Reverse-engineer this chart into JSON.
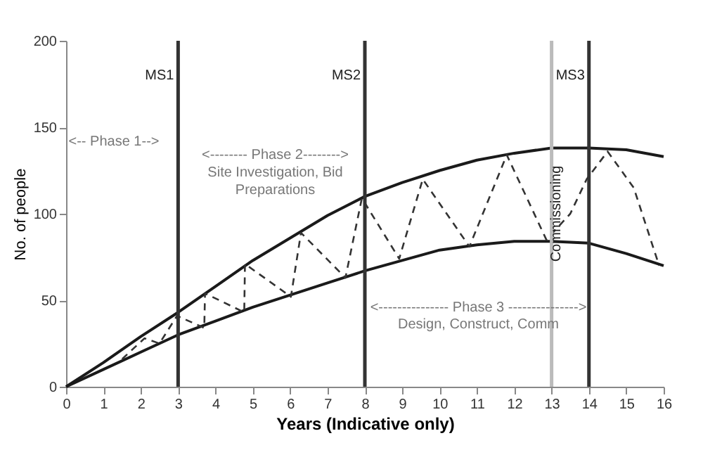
{
  "chart_data": {
    "type": "line",
    "xlabel": "Years (Indicative only)",
    "ylabel": "No. of people",
    "xlim": [
      0,
      16
    ],
    "xticks": [
      0,
      1,
      2,
      3,
      4,
      5,
      6,
      7,
      8,
      9,
      10,
      11,
      12,
      13,
      14,
      15,
      16
    ],
    "ylim": [
      0,
      200
    ],
    "yticks": [
      0,
      50,
      100,
      150,
      200
    ],
    "grid": false,
    "marker": "none",
    "series": [
      {
        "color": "#1a1a1a",
        "line_style": "solid",
        "x": [
          0,
          1,
          2,
          3,
          4,
          5,
          6,
          7,
          8,
          9,
          10,
          11,
          12,
          13,
          14,
          15,
          16
        ],
        "values": [
          0,
          14,
          29,
          43,
          58,
          73,
          86,
          99,
          110,
          118,
          125,
          131,
          135,
          138,
          138,
          137,
          133
        ]
      },
      {
        "color": "#1a1a1a",
        "line_style": "solid",
        "x": [
          0,
          1,
          2,
          3,
          4,
          5,
          6,
          7,
          8,
          9,
          10,
          11,
          12,
          13,
          14,
          15,
          16
        ],
        "values": [
          0,
          10,
          20,
          30,
          38,
          46,
          53,
          60,
          67,
          73,
          79,
          82,
          84,
          84,
          83,
          77,
          70
        ]
      },
      {
        "color": "#333333",
        "line_style": "dashed",
        "x": [
          1.5,
          2.1,
          2.5,
          2.97,
          3.7,
          3.72,
          4.77,
          4.79,
          6.02,
          6.29,
          7.48,
          7.92,
          8.92,
          9.55,
          10.8,
          11.8,
          12.86,
          13.5,
          13.94,
          14.5,
          15.2,
          15.88
        ],
        "values": [
          16,
          28,
          25,
          41,
          34,
          54,
          43,
          71,
          52,
          89,
          63,
          109,
          74,
          120,
          81,
          134,
          85,
          100,
          120,
          136,
          115,
          70
        ]
      }
    ],
    "ref_lines": [
      {
        "axis": "x",
        "value": 3,
        "label": "MS1",
        "color": "#333333",
        "line_style": "solid"
      },
      {
        "axis": "x",
        "value": 8,
        "label": "MS2",
        "color": "#333333",
        "line_style": "solid"
      },
      {
        "axis": "x",
        "value": 13,
        "label": "Commissioning",
        "color": "#bbbbbb",
        "line_style": "solid"
      },
      {
        "axis": "x",
        "value": 14,
        "label": "MS3",
        "color": "#333333",
        "line_style": "solid"
      }
    ],
    "annotations": [
      "<-- Phase 1-->",
      "<-------- Phase 2-------->",
      "Site Investigation, Bid",
      "Preparations",
      "<--------------- Phase 3 --------------->",
      "Design, Construct, Comm"
    ]
  }
}
